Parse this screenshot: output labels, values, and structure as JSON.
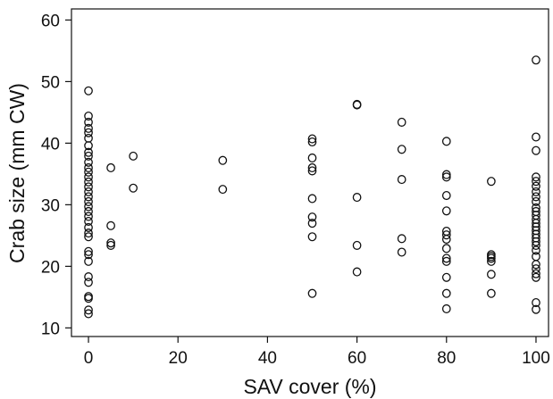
{
  "chart_data": {
    "type": "scatter",
    "title": "",
    "xlabel": "SAV cover (%)",
    "ylabel": "Crab size (mm CW)",
    "xlim": [
      -3.8,
      102.8
    ],
    "ylim": [
      8.6,
      61.8
    ],
    "xticks": [
      0,
      20,
      40,
      60,
      80,
      100
    ],
    "yticks": [
      10,
      20,
      30,
      40,
      50,
      60
    ],
    "xtick_labels": [
      "0",
      "20",
      "40",
      "60",
      "80",
      "100"
    ],
    "ytick_labels": [
      "10",
      "20",
      "30",
      "40",
      "50",
      "60"
    ],
    "grid": false,
    "legend": null,
    "marker": "open-circle",
    "series": [
      {
        "points": [
          [
            0,
            48.5
          ],
          [
            0,
            44.4
          ],
          [
            0,
            43.4
          ],
          [
            0,
            42.4
          ],
          [
            0,
            41.7
          ],
          [
            0,
            40.8
          ],
          [
            0,
            39.6
          ],
          [
            0,
            38.5
          ],
          [
            0,
            37.9
          ],
          [
            0,
            36.9
          ],
          [
            0,
            36.0
          ],
          [
            0,
            35.3
          ],
          [
            0,
            34.5
          ],
          [
            0,
            33.7
          ],
          [
            0,
            32.9
          ],
          [
            0,
            32.1
          ],
          [
            0,
            31.3
          ],
          [
            0,
            30.5
          ],
          [
            0,
            29.7
          ],
          [
            0,
            28.9
          ],
          [
            0,
            28.1
          ],
          [
            0,
            27.3
          ],
          [
            0,
            26.3
          ],
          [
            0,
            25.4
          ],
          [
            0,
            24.8
          ],
          [
            0,
            22.4
          ],
          [
            0,
            21.9
          ],
          [
            0,
            20.8
          ],
          [
            0,
            18.3
          ],
          [
            0,
            17.4
          ],
          [
            0,
            15.1
          ],
          [
            0,
            14.8
          ],
          [
            0,
            12.9
          ],
          [
            0,
            12.3
          ],
          [
            5,
            36.0
          ],
          [
            5,
            26.6
          ],
          [
            5,
            23.8
          ],
          [
            5,
            23.4
          ],
          [
            10,
            37.9
          ],
          [
            10,
            32.7
          ],
          [
            30,
            37.2
          ],
          [
            30,
            32.5
          ],
          [
            50,
            40.7
          ],
          [
            50,
            40.2
          ],
          [
            50,
            37.6
          ],
          [
            50,
            36.0
          ],
          [
            50,
            35.5
          ],
          [
            50,
            31.0
          ],
          [
            50,
            28.0
          ],
          [
            50,
            27.0
          ],
          [
            50,
            24.8
          ],
          [
            50,
            15.6
          ],
          [
            60,
            46.3
          ],
          [
            60,
            46.2
          ],
          [
            60,
            31.2
          ],
          [
            60,
            23.4
          ],
          [
            60,
            19.1
          ],
          [
            70,
            43.4
          ],
          [
            70,
            39.0
          ],
          [
            70,
            34.1
          ],
          [
            70,
            24.5
          ],
          [
            70,
            22.3
          ],
          [
            80,
            40.3
          ],
          [
            80,
            34.9
          ],
          [
            80,
            34.5
          ],
          [
            80,
            31.5
          ],
          [
            80,
            29.0
          ],
          [
            80,
            25.7
          ],
          [
            80,
            25.1
          ],
          [
            80,
            24.4
          ],
          [
            80,
            22.9
          ],
          [
            80,
            21.3
          ],
          [
            80,
            20.8
          ],
          [
            80,
            18.2
          ],
          [
            80,
            15.6
          ],
          [
            80,
            13.1
          ],
          [
            90,
            33.8
          ],
          [
            90,
            21.9
          ],
          [
            90,
            21.6
          ],
          [
            90,
            21.3
          ],
          [
            90,
            20.8
          ],
          [
            90,
            18.7
          ],
          [
            90,
            15.6
          ],
          [
            100,
            53.5
          ],
          [
            100,
            41.0
          ],
          [
            100,
            38.8
          ],
          [
            100,
            34.5
          ],
          [
            100,
            33.8
          ],
          [
            100,
            33.0
          ],
          [
            100,
            32.1
          ],
          [
            100,
            31.3
          ],
          [
            100,
            30.5
          ],
          [
            100,
            29.5
          ],
          [
            100,
            28.9
          ],
          [
            100,
            28.3
          ],
          [
            100,
            27.6
          ],
          [
            100,
            27.0
          ],
          [
            100,
            26.4
          ],
          [
            100,
            25.8
          ],
          [
            100,
            25.2
          ],
          [
            100,
            24.6
          ],
          [
            100,
            24.0
          ],
          [
            100,
            23.4
          ],
          [
            100,
            22.6
          ],
          [
            100,
            21.6
          ],
          [
            100,
            20.3
          ],
          [
            100,
            19.6
          ],
          [
            100,
            18.8
          ],
          [
            100,
            18.2
          ],
          [
            100,
            14.1
          ],
          [
            100,
            13.0
          ]
        ]
      }
    ]
  }
}
